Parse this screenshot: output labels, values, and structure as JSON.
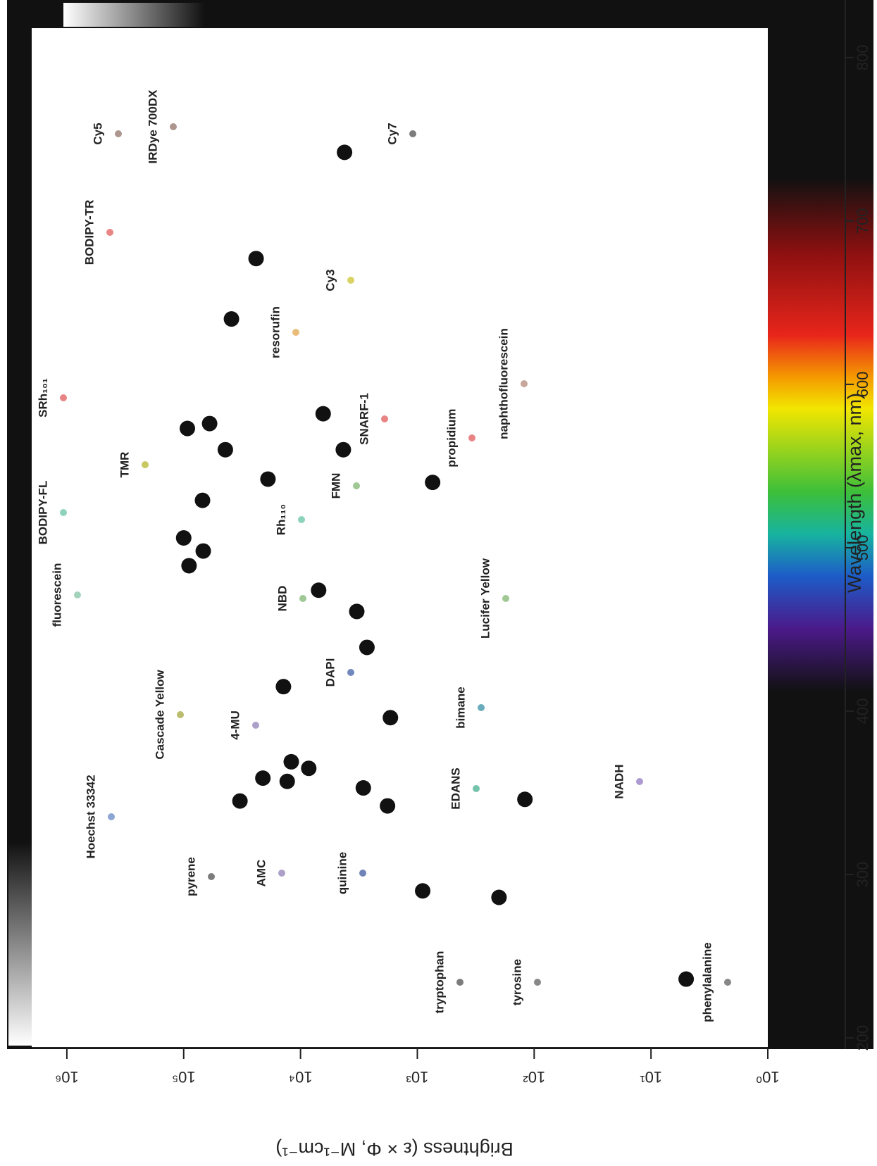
{
  "chart_data": {
    "type": "scatter",
    "x_label": "Wavelength (λmax, nm)",
    "y_label": "Brightness (ε × Φ, M⁻¹cm⁻¹)",
    "xlim": [
      194,
      818
    ],
    "xticks": [
      200,
      300,
      400,
      500,
      600,
      700,
      800
    ],
    "ylim": [
      1,
      2000000
    ],
    "log_y": true,
    "yticks": [
      {
        "value": 1,
        "label": "10⁰"
      },
      {
        "value": 10,
        "label": "10¹"
      },
      {
        "value": 100,
        "label": "10²"
      },
      {
        "value": 1000,
        "label": "10³"
      },
      {
        "value": 10000,
        "label": "10⁴"
      },
      {
        "value": 100000,
        "label": "10⁵"
      },
      {
        "value": 1000000,
        "label": "10⁶"
      }
    ],
    "color": "#111111",
    "labels": [
      "phenylalanine",
      "tryptophan",
      "tyrosine",
      "pyrene",
      "Hoechst 33342",
      "AMC",
      "4-MU",
      "DAPI",
      "quinine",
      "EDANS",
      "NADH",
      "bimane",
      "Cascade Yellow",
      "Lucifer Yellow",
      "NBD",
      "FMN",
      "fluorescein",
      "BODIPY-FL",
      "Rh₁₁₀",
      "TMR",
      "SRh₁₀₁",
      "BODIPY-TR",
      "resorufin",
      "Cy3",
      "SNARF-1",
      "naphthofluorescein",
      "propidium",
      "Cy5",
      "IRDye 700DX",
      "Cy7"
    ],
    "x": [
      236,
      290,
      286,
      345,
      359,
      357,
      369,
      365,
      353,
      342,
      346,
      396,
      415,
      439,
      474,
      461,
      489,
      506,
      498,
      529,
      573,
      576,
      560,
      542,
      560,
      582,
      540,
      640,
      677,
      742
    ],
    "y": [
      5,
      900,
      200,
      33000,
      21000,
      13000,
      12000,
      8500,
      2900,
      1800,
      120,
      1700,
      14000,
      2700,
      7000,
      3300,
      90000,
      100000,
      68000,
      69000,
      93000,
      60000,
      44000,
      19000,
      4300,
      6400,
      740,
      39000,
      24000,
      4200
    ]
  }
}
